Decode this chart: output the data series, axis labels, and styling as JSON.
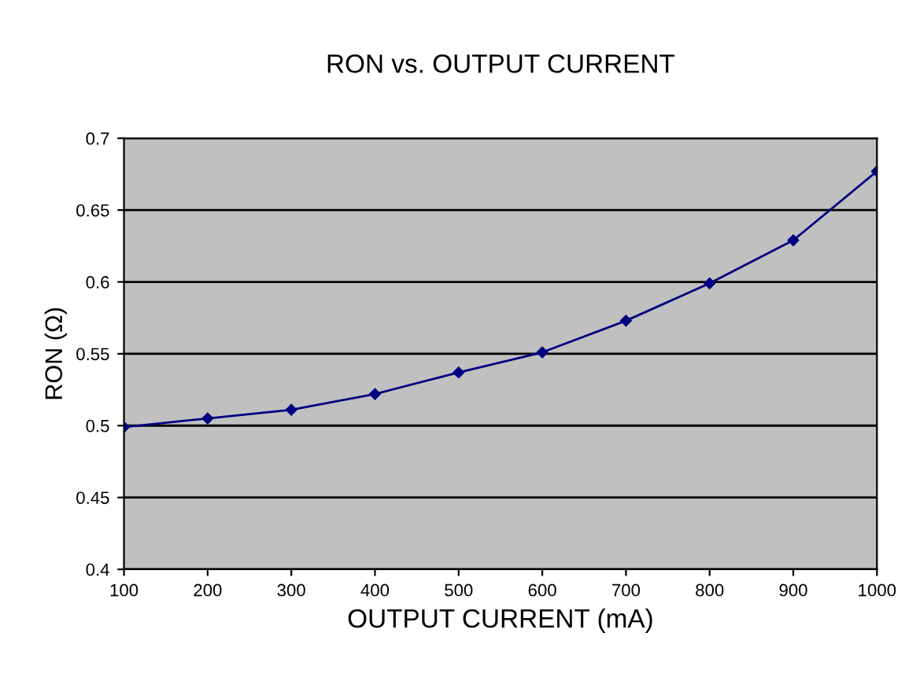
{
  "chart_data": {
    "type": "line",
    "title": "RON vs. OUTPUT CURRENT",
    "xlabel": "OUTPUT CURRENT (mA)",
    "ylabel": "RON (Ω)",
    "x": [
      100,
      200,
      300,
      400,
      500,
      600,
      700,
      800,
      900,
      1000
    ],
    "series": [
      {
        "color": "#000080",
        "values": [
          0.499,
          0.505,
          0.511,
          0.522,
          0.537,
          0.551,
          0.573,
          0.599,
          0.629,
          0.677
        ]
      }
    ],
    "xlim": [
      100,
      1000
    ],
    "xticks": [
      100,
      200,
      300,
      400,
      500,
      600,
      700,
      800,
      900,
      1000
    ],
    "ylim": [
      0.4,
      0.7
    ],
    "yticks": [
      0.4,
      0.45,
      0.5,
      0.55,
      0.6,
      0.65,
      0.7
    ],
    "grid": "y",
    "marker": "diamond",
    "line_style": "solid"
  }
}
